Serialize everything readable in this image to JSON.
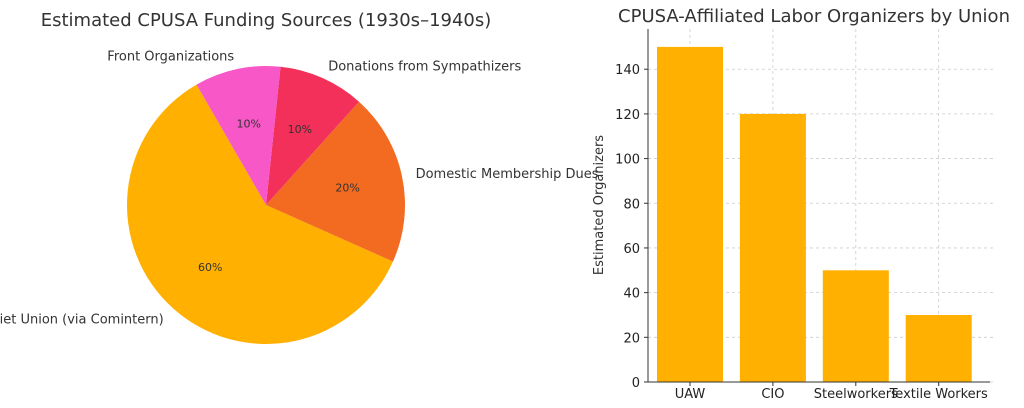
{
  "chart_data": [
    {
      "type": "pie",
      "title": "Estimated CPUSA Funding Sources (1930s–1940s)",
      "start_angle_deg": 120,
      "slices": [
        {
          "label": "Soviet Union (via Comintern)",
          "value": 60,
          "pct_label": "60%",
          "color": "#FFB000"
        },
        {
          "label": "Domestic Membership Dues",
          "value": 20,
          "pct_label": "20%",
          "color": "#F26B21"
        },
        {
          "label": "Donations from Sympathizers",
          "value": 10,
          "pct_label": "10%",
          "color": "#F2305A"
        },
        {
          "label": "Front Organizations",
          "value": 10,
          "pct_label": "10%",
          "color": "#F757C7"
        }
      ]
    },
    {
      "type": "bar",
      "title": "CPUSA-Affiliated Labor Organizers by Union",
      "categories": [
        "UAW",
        "CIO",
        "Steelworkers",
        "Textile Workers"
      ],
      "values": [
        150,
        120,
        50,
        30
      ],
      "xlabel": "",
      "ylabel": "Estimated Organizers",
      "ylim": [
        0,
        158
      ],
      "yticks": [
        0,
        20,
        40,
        60,
        80,
        100,
        120,
        140
      ],
      "grid": true,
      "bar_color": "#FFB000"
    }
  ]
}
